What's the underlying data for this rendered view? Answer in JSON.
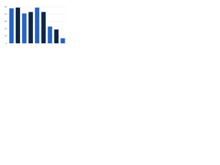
{
  "chart_data": {
    "type": "bar",
    "categories": [
      null,
      null,
      null,
      null,
      null,
      null,
      null,
      null,
      null
    ],
    "values": [
      48,
      49,
      41,
      43,
      49,
      43,
      23,
      19,
      7
    ],
    "colors": [
      "#2463c7",
      "#0f2545",
      "#2463c7",
      "#0f2545",
      "#2463c7",
      "#0f2545",
      "#2463c7",
      "#0f2545",
      "#2463c7"
    ],
    "ylim": [
      0,
      50
    ],
    "yticks": [
      0,
      10,
      20,
      30,
      40,
      50
    ],
    "grid": true
  }
}
